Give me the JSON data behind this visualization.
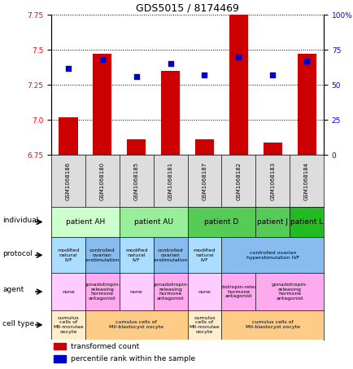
{
  "title": "GDS5015 / 8174469",
  "samples": [
    "GSM1068186",
    "GSM1068180",
    "GSM1068185",
    "GSM1068181",
    "GSM1068187",
    "GSM1068182",
    "GSM1068183",
    "GSM1068184"
  ],
  "transformed_count": [
    7.02,
    7.47,
    6.86,
    7.35,
    6.86,
    7.85,
    6.84,
    7.47
  ],
  "percentile_rank": [
    62,
    68,
    56,
    65,
    57,
    70,
    57,
    67
  ],
  "ylim_left": [
    6.75,
    7.75
  ],
  "ylim_right": [
    0,
    100
  ],
  "yticks_left": [
    6.75,
    7.0,
    7.25,
    7.5,
    7.75
  ],
  "yticks_right": [
    0,
    25,
    50,
    75,
    100
  ],
  "bar_color": "#cc0000",
  "dot_color": "#0000cc",
  "bar_bottom": 6.75,
  "individual_groups": [
    {
      "label": "patient AH",
      "cols": [
        0,
        1
      ],
      "color": "#ccffcc"
    },
    {
      "label": "patient AU",
      "cols": [
        2,
        3
      ],
      "color": "#99ee99"
    },
    {
      "label": "patient D",
      "cols": [
        4,
        5
      ],
      "color": "#55cc55"
    },
    {
      "label": "patient J",
      "cols": [
        6
      ],
      "color": "#55cc55"
    },
    {
      "label": "patient L",
      "cols": [
        7
      ],
      "color": "#22aa22"
    }
  ],
  "protocol_groups": [
    {
      "label": "modified\nnatural\nIVF",
      "cols": [
        0
      ],
      "color": "#aaddff"
    },
    {
      "label": "controlled\novarian\nhyperstimulation IVF",
      "cols": [
        1
      ],
      "color": "#88bbee"
    },
    {
      "label": "modified\nnatural\nIVF",
      "cols": [
        2
      ],
      "color": "#aaddff"
    },
    {
      "label": "controlled\novarian\nhyperstimulation IVF",
      "cols": [
        3
      ],
      "color": "#88bbee"
    },
    {
      "label": "modified\nnatural\nIVF",
      "cols": [
        4
      ],
      "color": "#aaddff"
    },
    {
      "label": "controlled ovarian\nhyperstimulation IVF",
      "cols": [
        5,
        6,
        7
      ],
      "color": "#88bbee"
    }
  ],
  "agent_groups": [
    {
      "label": "none",
      "cols": [
        0
      ],
      "color": "#ffccff"
    },
    {
      "label": "gonadotropin-\nreleasing\nhormone\nantagonist",
      "cols": [
        1
      ],
      "color": "#ffaaee"
    },
    {
      "label": "none",
      "cols": [
        2
      ],
      "color": "#ffccff"
    },
    {
      "label": "gonadotropin-\nreleasing\nhormone\nantagonist",
      "cols": [
        3
      ],
      "color": "#ffaaee"
    },
    {
      "label": "none",
      "cols": [
        4
      ],
      "color": "#ffccff"
    },
    {
      "label": "gonadotropin-releasing\nhormone\nantagonist",
      "cols": [
        5
      ],
      "color": "#ffaaee"
    },
    {
      "label": "gonadotropin-\nreleasing\nhormone\nantagonist",
      "cols": [
        6,
        7
      ],
      "color": "#ffaaee"
    }
  ],
  "celltype_groups": [
    {
      "label": "cumulus\ncells of\nMII-morulae\noocyte",
      "cols": [
        0
      ],
      "color": "#ffeecc"
    },
    {
      "label": "cumulus cells of\nMII-blastocyst oocyte",
      "cols": [
        1,
        2,
        3
      ],
      "color": "#ffcc88"
    },
    {
      "label": "cumulus\ncells of\nMII-morulae\noocyte",
      "cols": [
        4
      ],
      "color": "#ffeecc"
    },
    {
      "label": "cumulus cells of\nMII-blastocyst oocyte",
      "cols": [
        5,
        6,
        7
      ],
      "color": "#ffcc88"
    }
  ]
}
